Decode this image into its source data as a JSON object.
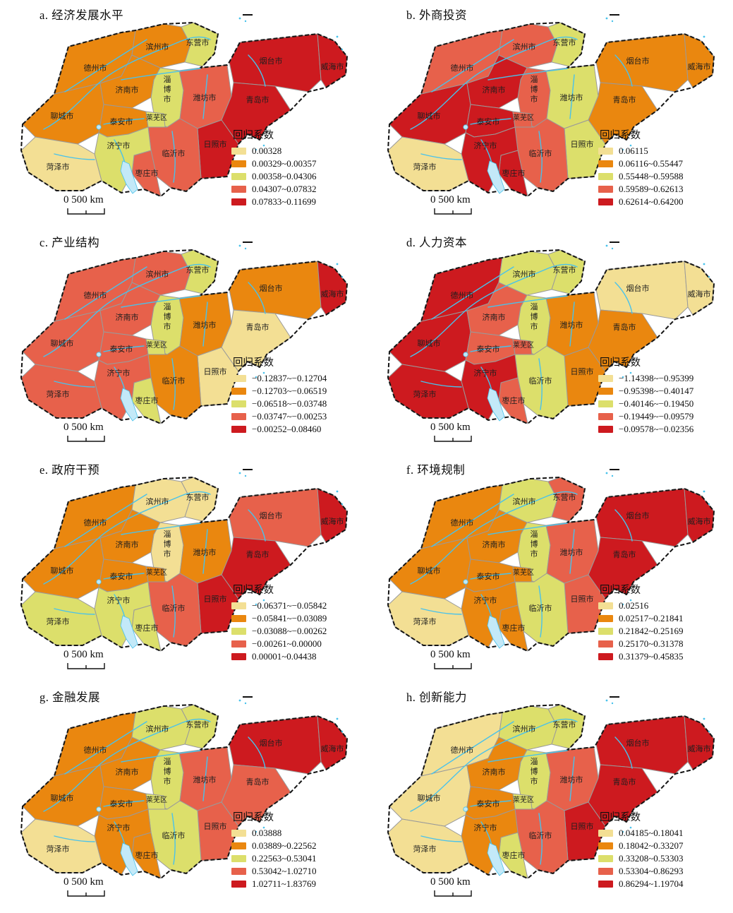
{
  "figure": {
    "description": "Eight choropleth maps of Shandong province showing GWR regression coefficients",
    "legend_title": "回归系数",
    "scale_text": "0  500 km"
  },
  "class_colors": [
    "#F3DF94",
    "#EA870F",
    "#DCDF6B",
    "#E7614B",
    "#CD1A1F"
  ],
  "cities": [
    {
      "id": "liaocheng",
      "name": "聊城市"
    },
    {
      "id": "dezhou",
      "name": "德州市"
    },
    {
      "id": "binzhou",
      "name": "滨州市"
    },
    {
      "id": "dongying",
      "name": "东营市"
    },
    {
      "id": "zibo",
      "name": "淄博市",
      "vertical": true
    },
    {
      "id": "jinan",
      "name": "济南市"
    },
    {
      "id": "taian",
      "name": "泰安市"
    },
    {
      "id": "laiwu",
      "name": "莱芜区"
    },
    {
      "id": "weifang",
      "name": "潍坊市"
    },
    {
      "id": "yantai",
      "name": "烟台市"
    },
    {
      "id": "weihai",
      "name": "威海市"
    },
    {
      "id": "qingdao",
      "name": "青岛市"
    },
    {
      "id": "rizhao",
      "name": "日照市"
    },
    {
      "id": "linyi",
      "name": "临沂市"
    },
    {
      "id": "zaozhuang",
      "name": "枣庄市"
    },
    {
      "id": "jining",
      "name": "济宁市"
    },
    {
      "id": "heze",
      "name": "菏泽市"
    }
  ],
  "panels": [
    {
      "letter": "a",
      "title": "a. 经济发展水平",
      "legend": [
        "0.00328",
        "0.00329~0.00357",
        "0.00358~0.04306",
        "0.04307~0.07832",
        "0.07833~0.11699"
      ],
      "city_classes": {
        "liaocheng": 2,
        "dezhou": 2,
        "binzhou": 2,
        "dongying": 3,
        "zibo": 3,
        "jinan": 2,
        "taian": 2,
        "laiwu": 3,
        "weifang": 4,
        "yantai": 5,
        "weihai": 5,
        "qingdao": 5,
        "rizhao": 5,
        "linyi": 4,
        "zaozhuang": 4,
        "jining": 3,
        "heze": 1
      }
    },
    {
      "letter": "b",
      "title": "b. 外商投资",
      "legend": [
        "0.06115",
        "0.06116~0.55447",
        "0.55448~0.59588",
        "0.59589~0.62613",
        "0.62614~0.64200"
      ],
      "city_classes": {
        "liaocheng": 5,
        "dezhou": 4,
        "binzhou": 4,
        "dongying": 3,
        "zibo": 4,
        "jinan": 5,
        "taian": 5,
        "laiwu": 4,
        "weifang": 3,
        "yantai": 2,
        "weihai": 2,
        "qingdao": 2,
        "rizhao": 3,
        "linyi": 4,
        "zaozhuang": 5,
        "jining": 5,
        "heze": 1
      }
    },
    {
      "letter": "c",
      "title": "c. 产业结构",
      "legend": [
        "−0.12837~−0.12704",
        "−0.12703~−0.06519",
        "−0.06518~−0.03748",
        "−0.03747~−0.00253",
        "−0.00252–0.08460"
      ],
      "city_classes": {
        "liaocheng": 4,
        "dezhou": 4,
        "binzhou": 4,
        "dongying": 3,
        "zibo": 3,
        "jinan": 4,
        "taian": 4,
        "laiwu": 3,
        "weifang": 2,
        "yantai": 2,
        "weihai": 5,
        "qingdao": 1,
        "rizhao": 1,
        "linyi": 2,
        "zaozhuang": 3,
        "jining": 4,
        "heze": 4
      }
    },
    {
      "letter": "d",
      "title": "d. 人力资本",
      "legend": [
        "−1.14398~−0.95399",
        "−0.95398~−0.40147",
        "−0.40146~−0.19450",
        "−0.19449~−0.09579",
        "−0.09578~−0.02356"
      ],
      "city_classes": {
        "liaocheng": 5,
        "dezhou": 5,
        "binzhou": 3,
        "dongying": 3,
        "zibo": 3,
        "jinan": 4,
        "taian": 4,
        "laiwu": 4,
        "weifang": 2,
        "yantai": 1,
        "weihai": 1,
        "qingdao": 2,
        "rizhao": 2,
        "linyi": 3,
        "zaozhuang": 4,
        "jining": 5,
        "heze": 5
      }
    },
    {
      "letter": "e",
      "title": "e. 政府干预",
      "legend": [
        "−0.06371~−0.05842",
        "−0.05841~−0.03089",
        "−0.03088~−0.00262",
        "−0.00261~0.00000",
        "0.00001~0.04438"
      ],
      "city_classes": {
        "liaocheng": 2,
        "dezhou": 2,
        "binzhou": 1,
        "dongying": 1,
        "zibo": 1,
        "jinan": 2,
        "taian": 2,
        "laiwu": 2,
        "weifang": 2,
        "yantai": 4,
        "weihai": 5,
        "qingdao": 5,
        "rizhao": 5,
        "linyi": 4,
        "zaozhuang": 3,
        "jining": 3,
        "heze": 3
      }
    },
    {
      "letter": "f",
      "title": "f. 环境规制",
      "legend": [
        "0.02516",
        "0.02517~0.21841",
        "0.21842~0.25169",
        "0.25170~0.31378",
        "0.31379~0.45835"
      ],
      "city_classes": {
        "liaocheng": 2,
        "dezhou": 2,
        "binzhou": 3,
        "dongying": 4,
        "zibo": 3,
        "jinan": 2,
        "taian": 2,
        "laiwu": 2,
        "weifang": 4,
        "yantai": 5,
        "weihai": 5,
        "qingdao": 5,
        "rizhao": 4,
        "linyi": 3,
        "zaozhuang": 2,
        "jining": 2,
        "heze": 1
      }
    },
    {
      "letter": "g",
      "title": "g. 金融发展",
      "legend": [
        "0.03888",
        "0.03889~0.22562",
        "0.22563~0.53041",
        "0.53042~1.02710",
        "1.02711~1.83769"
      ],
      "city_classes": {
        "liaocheng": 2,
        "dezhou": 2,
        "binzhou": 3,
        "dongying": 3,
        "zibo": 3,
        "jinan": 2,
        "taian": 2,
        "laiwu": 3,
        "weifang": 4,
        "yantai": 5,
        "weihai": 5,
        "qingdao": 4,
        "rizhao": 4,
        "linyi": 3,
        "zaozhuang": 2,
        "jining": 2,
        "heze": 1
      }
    },
    {
      "letter": "h",
      "title": "h. 创新能力",
      "legend": [
        "0.04185~0.18041",
        "0.18042~0.33207",
        "0.33208~0.53303",
        "0.53304~0.86293",
        "0.86294~1.19704"
      ],
      "city_classes": {
        "liaocheng": 1,
        "dezhou": 1,
        "binzhou": 3,
        "dongying": 3,
        "zibo": 3,
        "jinan": 2,
        "taian": 2,
        "laiwu": 3,
        "weifang": 4,
        "yantai": 5,
        "weihai": 5,
        "qingdao": 5,
        "rizhao": 5,
        "linyi": 4,
        "zaozhuang": 3,
        "jining": 2,
        "heze": 1
      }
    }
  ]
}
